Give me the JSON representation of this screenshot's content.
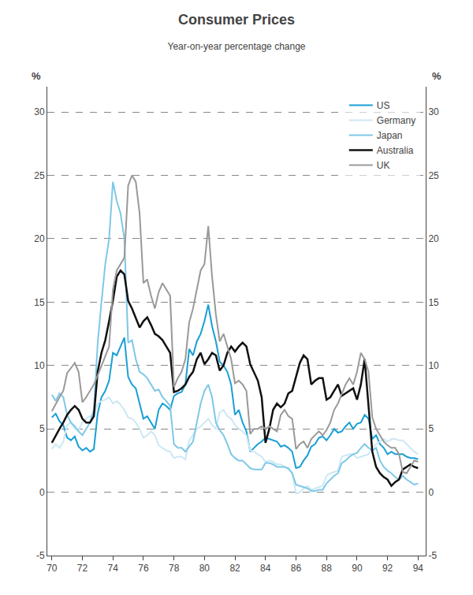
{
  "chart_data": {
    "type": "line",
    "title": "Consumer Prices",
    "subtitle": "Year-on-year percentage change",
    "ylabel": "%",
    "y2label": "%",
    "xlim": [
      1969.7,
      1994.5
    ],
    "xticks": [
      {
        "value": 1970,
        "label": "70"
      },
      {
        "value": 1972,
        "label": "72"
      },
      {
        "value": 1974,
        "label": "74"
      },
      {
        "value": 1976,
        "label": "76"
      },
      {
        "value": 1978,
        "label": "78"
      },
      {
        "value": 1980,
        "label": "80"
      },
      {
        "value": 1982,
        "label": "82"
      },
      {
        "value": 1984,
        "label": "84"
      },
      {
        "value": 1986,
        "label": "86"
      },
      {
        "value": 1988,
        "label": "88"
      },
      {
        "value": 1990,
        "label": "90"
      },
      {
        "value": 1992,
        "label": "92"
      },
      {
        "value": 1994,
        "label": "94"
      }
    ],
    "ylim": [
      -5,
      32
    ],
    "yticks": [
      -5,
      0,
      5,
      10,
      15,
      20,
      25,
      30
    ],
    "y2lim": [
      -5,
      32
    ],
    "y2ticks": [
      -5,
      0,
      5,
      10,
      15,
      20,
      25,
      30
    ],
    "grid": true,
    "legend": "upper right",
    "x": [
      1970.0,
      1970.25,
      1970.5,
      1970.75,
      1971.0,
      1971.25,
      1971.5,
      1971.75,
      1972.0,
      1972.25,
      1972.5,
      1972.75,
      1973.0,
      1973.25,
      1973.5,
      1973.75,
      1974.0,
      1974.25,
      1974.5,
      1974.75,
      1975.0,
      1975.25,
      1975.5,
      1975.75,
      1976.0,
      1976.25,
      1976.5,
      1976.75,
      1977.0,
      1977.25,
      1977.5,
      1977.75,
      1978.0,
      1978.25,
      1978.5,
      1978.75,
      1979.0,
      1979.25,
      1979.5,
      1979.75,
      1980.0,
      1980.25,
      1980.5,
      1980.75,
      1981.0,
      1981.25,
      1981.5,
      1981.75,
      1982.0,
      1982.25,
      1982.5,
      1982.75,
      1983.0,
      1983.25,
      1983.5,
      1983.75,
      1984.0,
      1984.25,
      1984.5,
      1984.75,
      1985.0,
      1985.25,
      1985.5,
      1985.75,
      1986.0,
      1986.25,
      1986.5,
      1986.75,
      1987.0,
      1987.25,
      1987.5,
      1987.75,
      1988.0,
      1988.25,
      1988.5,
      1988.75,
      1989.0,
      1989.25,
      1989.5,
      1989.75,
      1990.0,
      1990.25,
      1990.5,
      1990.75,
      1991.0,
      1991.25,
      1991.5,
      1991.75,
      1992.0,
      1992.25,
      1992.5,
      1992.75,
      1993.0,
      1993.25,
      1993.5,
      1993.75,
      1994.0
    ],
    "series": [
      {
        "name": "US",
        "color": "#1a9fd4",
        "values": [
          5.9,
          6.2,
          5.6,
          5.3,
          4.3,
          4.1,
          4.4,
          3.6,
          3.3,
          3.5,
          3.2,
          3.4,
          6.2,
          7.5,
          8.0,
          8.8,
          11.0,
          10.8,
          11.5,
          12.2,
          9.1,
          8.5,
          8.2,
          7.0,
          5.8,
          6.0,
          5.5,
          5.0,
          6.5,
          7.0,
          6.8,
          6.5,
          7.6,
          7.8,
          7.9,
          8.5,
          11.3,
          10.8,
          11.9,
          12.5,
          13.5,
          14.8,
          13.1,
          11.9,
          10.3,
          10.0,
          9.5,
          8.5,
          6.1,
          6.5,
          5.5,
          4.8,
          3.2,
          3.5,
          3.8,
          4.0,
          4.3,
          4.2,
          4.1,
          4.0,
          3.6,
          3.7,
          3.5,
          3.2,
          1.9,
          2.0,
          2.5,
          2.9,
          3.6,
          3.8,
          4.3,
          4.4,
          4.1,
          4.5,
          5.0,
          4.7,
          4.8,
          5.2,
          5.5,
          5.0,
          5.4,
          5.5,
          6.1,
          5.8,
          4.2,
          4.5,
          3.8,
          3.5,
          3.0,
          3.2,
          3.0,
          3.0,
          3.0,
          2.8,
          2.7,
          2.7,
          2.6
        ]
      },
      {
        "name": "Germany",
        "color": "#cce8f4",
        "values": [
          3.4,
          3.8,
          3.5,
          4.0,
          5.3,
          5.5,
          5.0,
          4.9,
          5.5,
          5.8,
          6.0,
          6.0,
          7.0,
          7.2,
          7.3,
          7.5,
          7.0,
          7.2,
          6.9,
          6.5,
          5.9,
          5.8,
          5.5,
          5.0,
          4.3,
          4.5,
          4.8,
          4.5,
          3.7,
          3.5,
          3.3,
          3.2,
          2.7,
          2.8,
          2.8,
          2.6,
          4.1,
          4.5,
          5.0,
          5.2,
          5.5,
          5.8,
          5.3,
          5.0,
          6.3,
          6.5,
          6.0,
          5.8,
          5.3,
          5.0,
          4.8,
          4.5,
          3.3,
          3.2,
          3.0,
          2.8,
          2.4,
          2.5,
          2.4,
          2.2,
          2.2,
          2.0,
          1.8,
          1.5,
          -0.1,
          0.0,
          0.3,
          0.5,
          0.2,
          0.3,
          0.4,
          0.5,
          1.3,
          1.5,
          1.6,
          1.7,
          2.8,
          2.9,
          3.0,
          3.0,
          2.7,
          2.8,
          2.9,
          3.0,
          3.5,
          3.8,
          4.0,
          4.2,
          4.0,
          4.2,
          4.2,
          4.1,
          4.1,
          3.8,
          3.5,
          3.2,
          3.0
        ]
      },
      {
        "name": "Japan",
        "color": "#7ec8e8",
        "values": [
          7.7,
          7.2,
          7.8,
          7.5,
          6.1,
          5.5,
          5.2,
          4.8,
          4.5,
          5.0,
          5.5,
          6.5,
          11.7,
          15.0,
          18.0,
          20.0,
          24.5,
          23.0,
          22.0,
          20.0,
          11.8,
          12.0,
          10.5,
          9.5,
          9.3,
          9.0,
          8.5,
          8.0,
          8.1,
          7.5,
          7.2,
          6.8,
          3.8,
          3.5,
          3.5,
          3.2,
          3.6,
          4.0,
          5.5,
          7.0,
          8.0,
          8.5,
          7.5,
          5.5,
          4.9,
          4.5,
          3.8,
          3.0,
          2.7,
          2.5,
          2.5,
          2.2,
          1.9,
          1.8,
          1.8,
          1.8,
          2.3,
          2.3,
          2.2,
          2.0,
          2.0,
          2.0,
          1.9,
          1.5,
          0.6,
          0.5,
          0.4,
          0.3,
          0.1,
          0.1,
          0.2,
          0.2,
          0.7,
          1.0,
          1.3,
          1.5,
          2.3,
          2.5,
          2.8,
          3.0,
          3.1,
          3.5,
          3.8,
          3.5,
          3.3,
          3.5,
          2.5,
          2.0,
          1.7,
          1.5,
          1.2,
          1.0,
          1.3,
          1.0,
          0.8,
          0.6,
          0.7
        ]
      },
      {
        "name": "Australia",
        "color": "#111111",
        "values": [
          3.9,
          4.5,
          5.0,
          5.5,
          6.1,
          6.5,
          6.8,
          6.5,
          5.8,
          5.5,
          5.5,
          6.0,
          9.5,
          11.0,
          12.0,
          13.5,
          15.1,
          17.0,
          17.5,
          17.2,
          15.1,
          14.5,
          13.8,
          13.0,
          13.5,
          13.8,
          13.2,
          12.5,
          12.3,
          12.0,
          11.5,
          11.0,
          7.9,
          8.0,
          8.2,
          8.5,
          9.1,
          9.5,
          10.5,
          11.0,
          10.1,
          10.5,
          11.0,
          10.8,
          9.6,
          10.0,
          11.0,
          11.5,
          11.1,
          11.5,
          11.8,
          11.5,
          10.1,
          9.5,
          8.8,
          7.5,
          3.9,
          5.0,
          6.5,
          7.0,
          6.7,
          7.0,
          7.8,
          8.0,
          9.1,
          10.2,
          10.8,
          10.5,
          8.5,
          8.8,
          9.0,
          9.0,
          7.3,
          7.5,
          8.0,
          8.5,
          7.6,
          7.8,
          8.0,
          8.2,
          7.3,
          8.5,
          10.5,
          7.0,
          3.2,
          2.0,
          1.5,
          1.2,
          1.0,
          0.5,
          0.8,
          1.0,
          1.8,
          2.0,
          2.2,
          2.0,
          1.9
        ]
      },
      {
        "name": "UK",
        "color": "#999999",
        "values": [
          6.4,
          7.0,
          7.5,
          8.0,
          9.4,
          9.8,
          10.2,
          9.5,
          7.1,
          7.5,
          8.0,
          8.5,
          9.2,
          10.0,
          10.8,
          11.5,
          16.0,
          17.5,
          18.0,
          18.5,
          24.2,
          25.0,
          24.5,
          22.0,
          16.5,
          16.8,
          15.5,
          14.5,
          15.8,
          16.5,
          16.0,
          15.5,
          8.3,
          9.0,
          9.5,
          10.5,
          13.4,
          14.5,
          16.0,
          17.5,
          18.0,
          21.0,
          17.0,
          14.0,
          11.9,
          12.5,
          11.5,
          10.5,
          8.6,
          8.8,
          8.5,
          8.0,
          4.6,
          5.0,
          5.0,
          5.2,
          5.0,
          5.2,
          5.0,
          4.8,
          6.1,
          6.5,
          6.0,
          5.8,
          3.4,
          3.8,
          4.0,
          3.5,
          4.2,
          4.5,
          4.8,
          4.5,
          4.9,
          5.5,
          6.5,
          7.0,
          7.8,
          8.5,
          9.0,
          8.5,
          9.5,
          11.0,
          10.5,
          9.5,
          5.9,
          5.0,
          4.5,
          4.0,
          3.7,
          3.5,
          3.5,
          3.0,
          1.6,
          1.5,
          2.0,
          2.5,
          2.4
        ]
      }
    ]
  }
}
